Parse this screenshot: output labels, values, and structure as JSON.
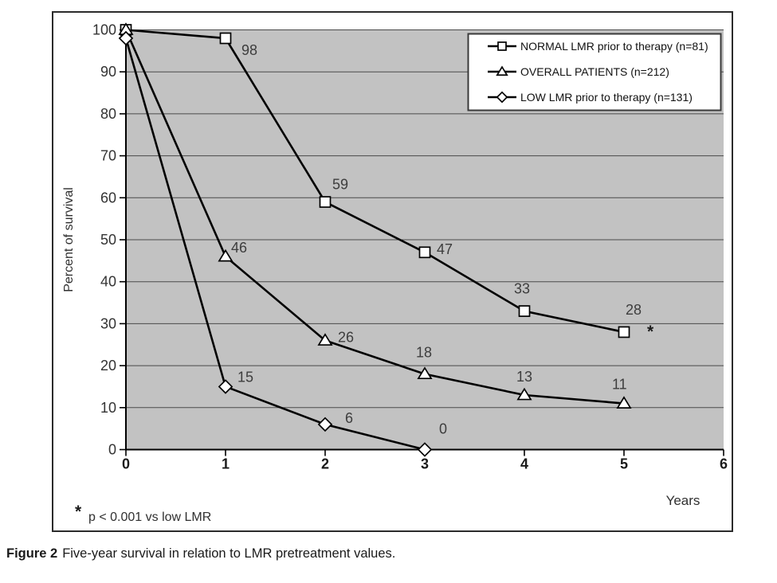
{
  "figure": {
    "caption_label": "Figure 2",
    "caption_text": "Five-year survival in relation to LMR pretreatment values."
  },
  "footnote": {
    "symbol": "*",
    "text": "p < 0.001 vs low LMR"
  },
  "chart_data": {
    "type": "line",
    "title": "",
    "xlabel": "Years",
    "ylabel": "Percent of survival",
    "x": [
      0,
      1,
      2,
      3,
      4,
      5
    ],
    "series": [
      {
        "name": "NORMAL LMR prior to therapy (n=81)",
        "marker": "square",
        "values": [
          100,
          98,
          59,
          47,
          33,
          28
        ],
        "point_labels": [
          "",
          "98",
          "59",
          "47",
          "33",
          "28"
        ],
        "annotation": "*"
      },
      {
        "name": "OVERALL PATIENTS (n=212)",
        "marker": "triangle",
        "values": [
          100,
          46,
          26,
          18,
          13,
          11
        ],
        "point_labels": [
          "",
          "46",
          "26",
          "18",
          "13",
          "11"
        ]
      },
      {
        "name": "LOW LMR prior to therapy (n=131)",
        "marker": "diamond",
        "values": [
          98,
          15,
          6,
          0
        ],
        "point_labels": [
          "",
          "15",
          "6",
          "0"
        ]
      }
    ],
    "xlim": [
      0,
      6
    ],
    "ylim": [
      0,
      100
    ],
    "xticks": [
      0,
      1,
      2,
      3,
      4,
      5,
      6
    ],
    "yticks": [
      0,
      10,
      20,
      30,
      40,
      50,
      60,
      70,
      80,
      90,
      100
    ],
    "grid": true,
    "legend_position": "top-right",
    "colors": {
      "line": "#000000",
      "plot_bg": "#c2c2c2",
      "marker_fill": "#ffffff",
      "grid_line": "#4a4a4a",
      "tick_label": "#333333",
      "data_label": "#3d3d3d"
    }
  }
}
